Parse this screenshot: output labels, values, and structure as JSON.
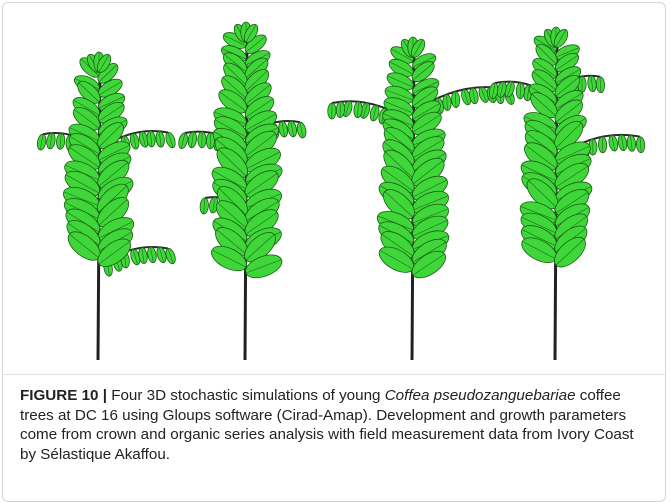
{
  "figure": {
    "label": "FIGURE 10 |",
    "caption": {
      "before": " Four 3D stochastic simulations of young ",
      "species": "Coffea pseudozanguebariae",
      "after": " coffee trees at DC 16 using Gloups software (Cirad-Amap). Development and growth parameters come from crown and organic series analysis with field measurement data from Ivory Coast by Sélastique Akaffou."
    }
  }
}
